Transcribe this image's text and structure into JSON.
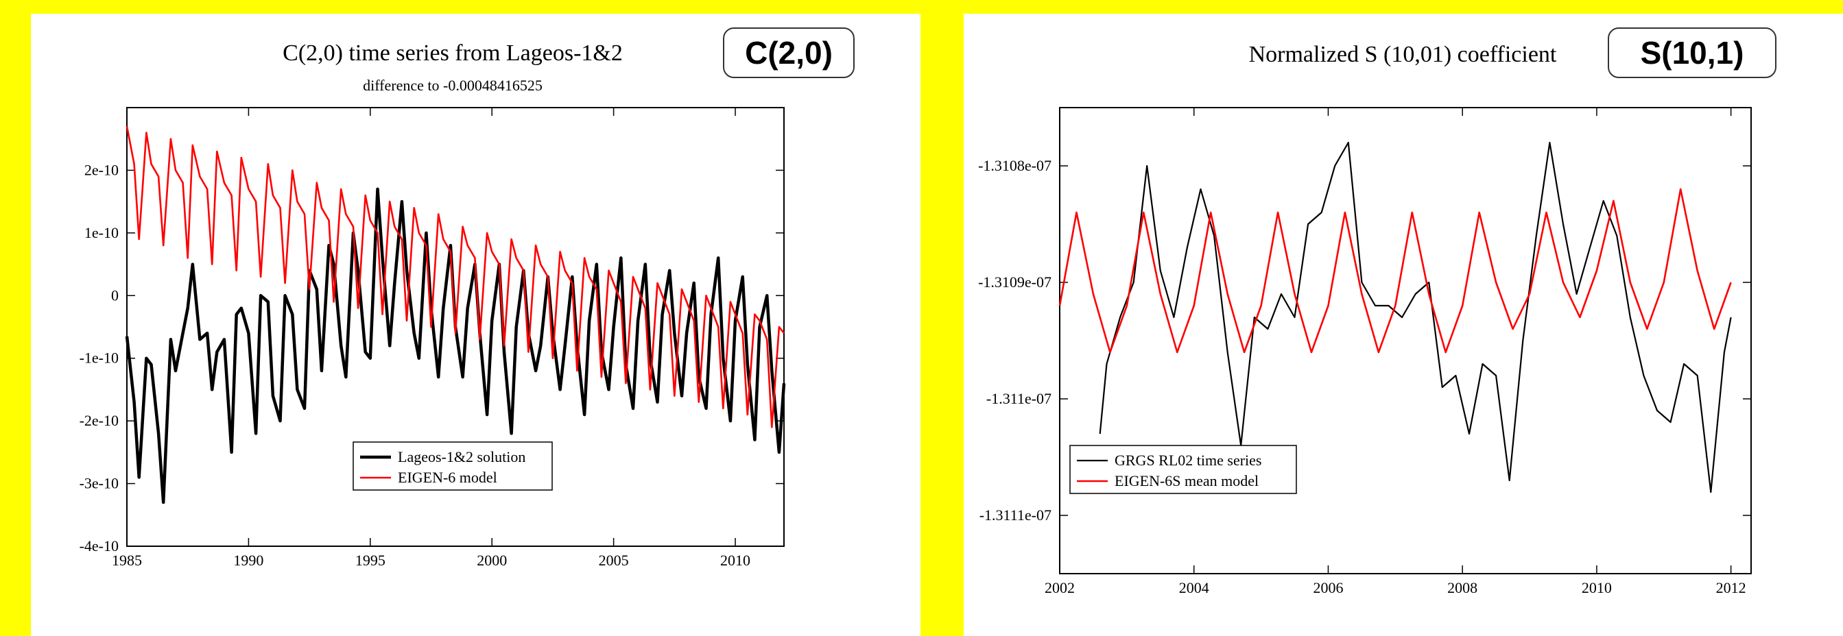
{
  "chart_data": [
    {
      "type": "line",
      "title": "C(2,0) time series from Lageos-1&2",
      "subtitle": "difference to -0.00048416525",
      "badge": "C(2,0)",
      "xlabel": "",
      "ylabel": "",
      "xlim": [
        1985,
        2012
      ],
      "ylim": [
        -4e-10,
        3e-10
      ],
      "x_ticks": [
        1985,
        1990,
        1995,
        2000,
        2005,
        2010
      ],
      "x_tick_labels": [
        "1985",
        "1990",
        "1995",
        "2000",
        "2005",
        "2010"
      ],
      "y_ticks": [
        -4e-10,
        -3e-10,
        -2e-10,
        -1e-10,
        0,
        1e-10,
        2e-10
      ],
      "y_tick_labels": [
        "-4e-10",
        "-3e-10",
        "-2e-10",
        "-1e-10",
        "0",
        "1e-10",
        "2e-10"
      ],
      "grid": false,
      "legend_position": "bottom-center",
      "series": [
        {
          "name": "Lageos-1&2 solution",
          "color": "#000000",
          "x": [
            1985.0,
            1985.3,
            1985.5,
            1985.8,
            1986.0,
            1986.3,
            1986.5,
            1986.8,
            1987.0,
            1987.3,
            1987.5,
            1987.7,
            1988.0,
            1988.3,
            1988.5,
            1988.7,
            1989.0,
            1989.3,
            1989.5,
            1989.7,
            1990.0,
            1990.3,
            1990.5,
            1990.8,
            1991.0,
            1991.3,
            1991.5,
            1991.8,
            1992.0,
            1992.3,
            1992.5,
            1992.8,
            1993.0,
            1993.3,
            1993.5,
            1993.8,
            1994.0,
            1994.3,
            1994.5,
            1994.8,
            1995.0,
            1995.3,
            1995.5,
            1995.8,
            1996.0,
            1996.3,
            1996.5,
            1996.8,
            1997.0,
            1997.3,
            1997.5,
            1997.8,
            1998.0,
            1998.3,
            1998.5,
            1998.8,
            1999.0,
            1999.3,
            1999.5,
            1999.8,
            2000.0,
            2000.3,
            2000.5,
            2000.8,
            2001.0,
            2001.3,
            2001.5,
            2001.8,
            2002.0,
            2002.3,
            2002.5,
            2002.8,
            2003.0,
            2003.3,
            2003.5,
            2003.8,
            2004.0,
            2004.3,
            2004.5,
            2004.8,
            2005.0,
            2005.3,
            2005.5,
            2005.8,
            2006.0,
            2006.3,
            2006.5,
            2006.8,
            2007.0,
            2007.3,
            2007.5,
            2007.8,
            2008.0,
            2008.3,
            2008.5,
            2008.8,
            2009.0,
            2009.3,
            2009.5,
            2009.8,
            2010.0,
            2010.3,
            2010.5,
            2010.8,
            2011.0,
            2011.3,
            2011.5,
            2011.8,
            2012.0
          ],
          "y": [
            -6.5e-11,
            -1.7e-10,
            -2.9e-10,
            -1e-10,
            -1.1e-10,
            -2.2e-10,
            -3.3e-10,
            -7e-11,
            -1.2e-10,
            -6e-11,
            -2e-11,
            5e-11,
            -7e-11,
            -6e-11,
            -1.5e-10,
            -9e-11,
            -7e-11,
            -2.5e-10,
            -3e-11,
            -2e-11,
            -6e-11,
            -2.2e-10,
            0.0,
            -1e-11,
            -1.6e-10,
            -2e-10,
            0.0,
            -3e-11,
            -1.5e-10,
            -1.8e-10,
            4e-11,
            1e-11,
            -1.2e-10,
            8e-11,
            5e-11,
            -8e-11,
            -1.3e-10,
            1e-10,
            4e-11,
            -9e-11,
            -1e-10,
            1.7e-10,
            6e-11,
            -8e-11,
            2e-11,
            1.5e-10,
            4e-11,
            -6e-11,
            -1e-10,
            1e-10,
            -2e-11,
            -1.3e-10,
            -2e-11,
            8e-11,
            -5e-11,
            -1.3e-10,
            -2e-11,
            5e-11,
            -6e-11,
            -1.9e-10,
            -4e-11,
            5e-11,
            -9e-11,
            -2.2e-10,
            -5e-11,
            4e-11,
            -6e-11,
            -1.2e-10,
            -8e-11,
            3e-11,
            -6e-11,
            -1.5e-10,
            -8e-11,
            3e-11,
            -8e-11,
            -1.9e-10,
            -4e-11,
            5e-11,
            -9e-11,
            -1.5e-10,
            -5e-11,
            6e-11,
            -1.1e-10,
            -1.8e-10,
            -4e-11,
            5e-11,
            -1e-10,
            -1.7e-10,
            -3e-11,
            4e-11,
            -6e-11,
            -1.6e-10,
            -6e-11,
            2e-11,
            -1.3e-10,
            -1.8e-10,
            -3e-11,
            6e-11,
            -1e-10,
            -2e-10,
            -4e-11,
            3e-11,
            -1.1e-10,
            -2.3e-10,
            -5e-11,
            0.0,
            -1.2e-10,
            -2.5e-10,
            -1.4e-10
          ]
        },
        {
          "name": "EIGEN-6 model",
          "color": "#ff0000",
          "x": [
            1985.0,
            1985.3,
            1985.5,
            1985.8,
            1986.0,
            1986.3,
            1986.5,
            1986.8,
            1987.0,
            1987.3,
            1987.5,
            1987.7,
            1988.0,
            1988.3,
            1988.5,
            1988.7,
            1989.0,
            1989.3,
            1989.5,
            1989.7,
            1990.0,
            1990.3,
            1990.5,
            1990.8,
            1991.0,
            1991.3,
            1991.5,
            1991.8,
            1992.0,
            1992.3,
            1992.5,
            1992.8,
            1993.0,
            1993.3,
            1993.5,
            1993.8,
            1994.0,
            1994.3,
            1994.5,
            1994.8,
            1995.0,
            1995.3,
            1995.5,
            1995.8,
            1996.0,
            1996.3,
            1996.5,
            1996.8,
            1997.0,
            1997.3,
            1997.5,
            1997.8,
            1998.0,
            1998.3,
            1998.5,
            1998.8,
            1999.0,
            1999.3,
            1999.5,
            1999.8,
            2000.0,
            2000.3,
            2000.5,
            2000.8,
            2001.0,
            2001.3,
            2001.5,
            2001.8,
            2002.0,
            2002.3,
            2002.5,
            2002.8,
            2003.0,
            2003.3,
            2003.5,
            2003.8,
            2004.0,
            2004.3,
            2004.5,
            2004.8,
            2005.0,
            2005.3,
            2005.5,
            2005.8,
            2006.0,
            2006.3,
            2006.5,
            2006.8,
            2007.0,
            2007.3,
            2007.5,
            2007.8,
            2008.0,
            2008.3,
            2008.5,
            2008.8,
            2009.0,
            2009.3,
            2009.5,
            2009.8,
            2010.0,
            2010.3,
            2010.5,
            2010.8,
            2011.0,
            2011.3,
            2011.5,
            2011.8,
            2012.0
          ],
          "y": [
            2.7e-10,
            2.1e-10,
            9e-11,
            2.6e-10,
            2.1e-10,
            1.9e-10,
            8e-11,
            2.5e-10,
            2e-10,
            1.8e-10,
            6e-11,
            2.4e-10,
            1.9e-10,
            1.7e-10,
            5e-11,
            2.3e-10,
            1.8e-10,
            1.6e-10,
            4e-11,
            2.2e-10,
            1.7e-10,
            1.5e-10,
            3e-11,
            2.1e-10,
            1.6e-10,
            1.4e-10,
            2e-11,
            2e-10,
            1.5e-10,
            1.3e-10,
            1e-11,
            1.8e-10,
            1.4e-10,
            1.2e-10,
            -1e-11,
            1.7e-10,
            1.3e-10,
            1.1e-10,
            -2e-11,
            1.6e-10,
            1.2e-10,
            1e-10,
            -3e-11,
            1.5e-10,
            1.1e-10,
            9e-11,
            -4e-11,
            1.4e-10,
            1e-10,
            8e-11,
            -5e-11,
            1.3e-10,
            9e-11,
            7e-11,
            -6e-11,
            1.1e-10,
            8e-11,
            6e-11,
            -7e-11,
            1e-10,
            7e-11,
            5e-11,
            -8e-11,
            9e-11,
            6e-11,
            4e-11,
            -9e-11,
            8e-11,
            5e-11,
            3e-11,
            -1e-10,
            7e-11,
            4e-11,
            2e-11,
            -1.2e-10,
            6e-11,
            3e-11,
            1e-11,
            -1.3e-10,
            4e-11,
            2e-11,
            -1e-11,
            -1.4e-10,
            3e-11,
            1e-11,
            -2e-11,
            -1.5e-10,
            2e-11,
            0.0,
            -3e-11,
            -1.6e-10,
            1e-11,
            -1e-11,
            -4e-11,
            -1.7e-10,
            0.0,
            -2e-11,
            -5e-11,
            -1.8e-10,
            -1e-11,
            -3e-11,
            -6e-11,
            -1.9e-10,
            -3e-11,
            -4e-11,
            -7e-11,
            -2.1e-10,
            -5e-11,
            -6e-11
          ]
        }
      ]
    },
    {
      "type": "line",
      "title": "Normalized S (10,01) coefficient",
      "badge": "S(10,1)",
      "xlabel": "",
      "ylabel": "",
      "xlim": [
        2002,
        2012.3
      ],
      "ylim": [
        -1.31115e-07,
        -1.31075e-07
      ],
      "x_ticks": [
        2002,
        2004,
        2006,
        2008,
        2010,
        2012
      ],
      "x_tick_labels": [
        "2002",
        "2004",
        "2006",
        "2008",
        "2010",
        "2012"
      ],
      "y_ticks": [
        -1.3108e-07,
        -1.3109e-07,
        -1.311e-07,
        -1.3111e-07
      ],
      "y_tick_labels": [
        "-1.3108e-07",
        "-1.3109e-07",
        "-1.311e-07",
        "-1.3111e-07"
      ],
      "grid": false,
      "legend_position": "bottom-left",
      "series": [
        {
          "name": "GRGS RL02 time series",
          "color": "#000000",
          "x": [
            2002.6,
            2002.7,
            2002.9,
            2003.1,
            2003.3,
            2003.5,
            2003.7,
            2003.9,
            2004.1,
            2004.3,
            2004.5,
            2004.7,
            2004.9,
            2005.1,
            2005.3,
            2005.5,
            2005.7,
            2005.9,
            2006.1,
            2006.3,
            2006.5,
            2006.7,
            2006.9,
            2007.1,
            2007.3,
            2007.5,
            2007.7,
            2007.9,
            2008.1,
            2008.3,
            2008.5,
            2008.7,
            2008.9,
            2009.1,
            2009.3,
            2009.5,
            2009.7,
            2009.9,
            2010.1,
            2010.3,
            2010.5,
            2010.7,
            2010.9,
            2011.1,
            2011.3,
            2011.5,
            2011.7,
            2011.9,
            2012.0
          ],
          "y": [
            -1.31103e-07,
            -1.31097e-07,
            -1.31093e-07,
            -1.3109e-07,
            -1.3108e-07,
            -1.31089e-07,
            -1.31093e-07,
            -1.31087e-07,
            -1.31082e-07,
            -1.31086e-07,
            -1.31096e-07,
            -1.31104e-07,
            -1.31093e-07,
            -1.31094e-07,
            -1.31091e-07,
            -1.31093e-07,
            -1.31085e-07,
            -1.31084e-07,
            -1.3108e-07,
            -1.31078e-07,
            -1.3109e-07,
            -1.31092e-07,
            -1.31092e-07,
            -1.31093e-07,
            -1.31091e-07,
            -1.3109e-07,
            -1.31099e-07,
            -1.31098e-07,
            -1.31103e-07,
            -1.31097e-07,
            -1.31098e-07,
            -1.31107e-07,
            -1.31095e-07,
            -1.31086e-07,
            -1.31078e-07,
            -1.31085e-07,
            -1.31091e-07,
            -1.31087e-07,
            -1.31083e-07,
            -1.31086e-07,
            -1.31093e-07,
            -1.31098e-07,
            -1.31101e-07,
            -1.31102e-07,
            -1.31097e-07,
            -1.31098e-07,
            -1.31108e-07,
            -1.31096e-07,
            -1.31093e-07
          ]
        },
        {
          "name": "EIGEN-6S mean model",
          "color": "#ff0000",
          "x": [
            2002.0,
            2002.25,
            2002.5,
            2002.75,
            2003.0,
            2003.25,
            2003.5,
            2003.75,
            2004.0,
            2004.25,
            2004.5,
            2004.75,
            2005.0,
            2005.25,
            2005.5,
            2005.75,
            2006.0,
            2006.25,
            2006.5,
            2006.75,
            2007.0,
            2007.25,
            2007.5,
            2007.75,
            2008.0,
            2008.25,
            2008.5,
            2008.75,
            2009.0,
            2009.25,
            2009.5,
            2009.75,
            2010.0,
            2010.25,
            2010.5,
            2010.75,
            2011.0,
            2011.25,
            2011.5,
            2011.75,
            2012.0
          ],
          "y": [
            -1.31092e-07,
            -1.31084e-07,
            -1.31091e-07,
            -1.31096e-07,
            -1.31092e-07,
            -1.31084e-07,
            -1.31091e-07,
            -1.31096e-07,
            -1.31092e-07,
            -1.31084e-07,
            -1.31091e-07,
            -1.31096e-07,
            -1.31092e-07,
            -1.31084e-07,
            -1.31091e-07,
            -1.31096e-07,
            -1.31092e-07,
            -1.31084e-07,
            -1.31091e-07,
            -1.31096e-07,
            -1.31092e-07,
            -1.31084e-07,
            -1.31091e-07,
            -1.31096e-07,
            -1.31092e-07,
            -1.31084e-07,
            -1.3109e-07,
            -1.31094e-07,
            -1.31091e-07,
            -1.31084e-07,
            -1.3109e-07,
            -1.31093e-07,
            -1.31089e-07,
            -1.31083e-07,
            -1.3109e-07,
            -1.31094e-07,
            -1.3109e-07,
            -1.31082e-07,
            -1.31089e-07,
            -1.31094e-07,
            -1.3109e-07
          ]
        }
      ]
    }
  ]
}
